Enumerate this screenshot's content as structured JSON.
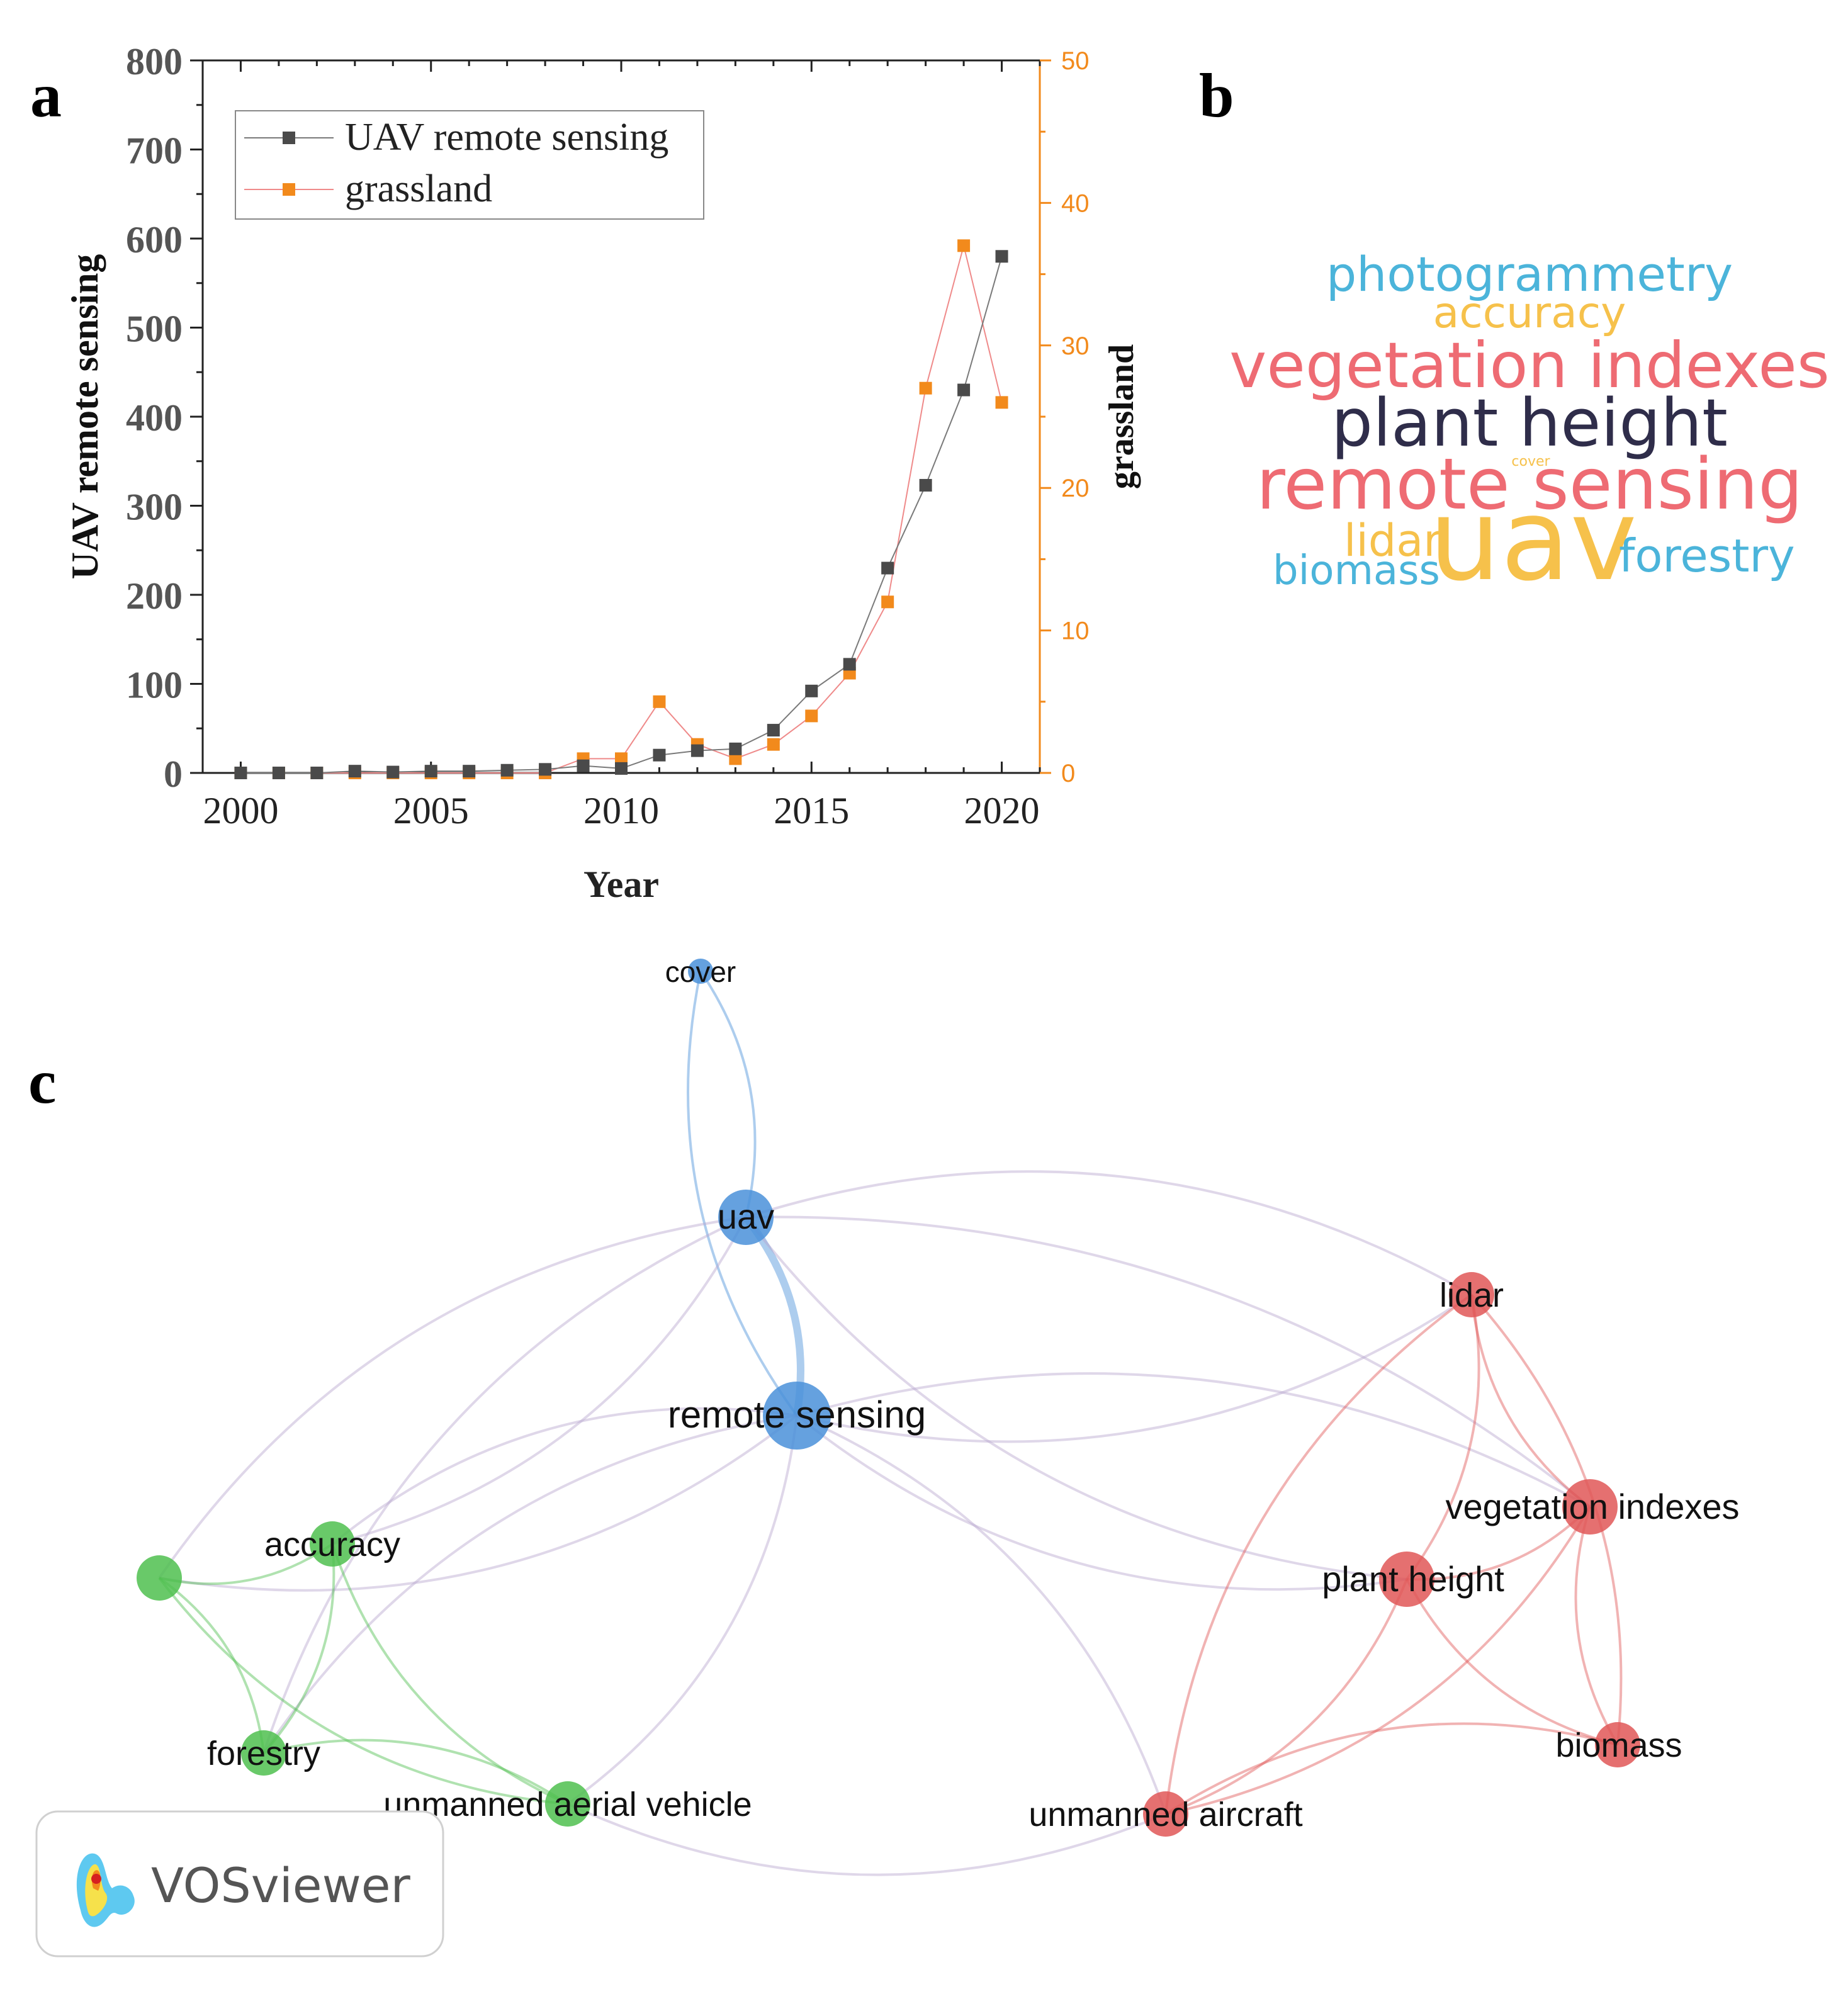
{
  "panels": {
    "a": "a",
    "b": "b",
    "c": "c"
  },
  "chart_data": [
    {
      "type": "line",
      "title": "",
      "xlabel": "Year",
      "ylabel": "UAV remote sensing",
      "y2label": "grassland",
      "x": [
        2000,
        2001,
        2002,
        2003,
        2004,
        2005,
        2006,
        2007,
        2008,
        2009,
        2010,
        2011,
        2012,
        2013,
        2014,
        2015,
        2016,
        2017,
        2018,
        2019,
        2020
      ],
      "xticks": [
        "2000",
        "2005",
        "2010",
        "2015",
        "2020"
      ],
      "xlim": [
        1999,
        2021
      ],
      "ylim": [
        0,
        800
      ],
      "yticks": [
        "0",
        "100",
        "200",
        "300",
        "400",
        "500",
        "600",
        "700",
        "800"
      ],
      "y2lim": [
        0,
        50
      ],
      "y2ticks": [
        "0",
        "10",
        "20",
        "30",
        "40",
        "50"
      ],
      "legend_position": "top-left",
      "series": [
        {
          "name": "UAV remote sensing",
          "axis": "left",
          "color": "#4a4a4a",
          "line_color": "#7a7a7a",
          "values": [
            0,
            0,
            0,
            2,
            1,
            2,
            2,
            3,
            4,
            8,
            5,
            20,
            25,
            27,
            48,
            92,
            122,
            230,
            323,
            430,
            580
          ]
        },
        {
          "name": "grassland",
          "axis": "right",
          "color": "#f28a1c",
          "line_color": "#ef8a8a",
          "values": [
            0,
            0,
            0,
            0,
            0,
            0,
            0,
            0,
            0,
            1,
            1,
            5,
            2,
            1,
            2,
            4,
            7,
            12,
            27,
            37,
            26
          ]
        }
      ]
    },
    {
      "type": "wordcloud",
      "words": [
        {
          "text": "photogrammetry",
          "color": "#4bb4da"
        },
        {
          "text": "accuracy",
          "color": "#f6c14b"
        },
        {
          "text": "vegetation indexes",
          "color": "#ee6b73"
        },
        {
          "text": "plant height",
          "color": "#2f2d4a"
        },
        {
          "text": "cover",
          "color": "#f6c14b"
        },
        {
          "text": "remote sensing",
          "color": "#ee6b73"
        },
        {
          "text": "lidar",
          "color": "#f6c14b"
        },
        {
          "text": "uav",
          "color": "#f6c14b"
        },
        {
          "text": "forestry",
          "color": "#4bb4da"
        },
        {
          "text": "biomass",
          "color": "#4bb4da"
        }
      ]
    },
    {
      "type": "network",
      "brand": "VOSviewer",
      "clusters": {
        "blue": "#4a90d9",
        "green": "#4fbf4f",
        "red": "#e05757"
      },
      "nodes": [
        {
          "id": "cover",
          "label": "cover",
          "cluster": "blue",
          "weight": 1
        },
        {
          "id": "uav",
          "label": "uav",
          "cluster": "blue",
          "weight": 4
        },
        {
          "id": "remote-sensing",
          "label": "remote sensing",
          "cluster": "blue",
          "weight": 5
        },
        {
          "id": "green-unlabeled",
          "label": "",
          "cluster": "green",
          "weight": 3
        },
        {
          "id": "accuracy",
          "label": "accuracy",
          "cluster": "green",
          "weight": 3
        },
        {
          "id": "forestry",
          "label": "forestry",
          "cluster": "green",
          "weight": 3
        },
        {
          "id": "unmanned-aerial-vehicle",
          "label": "unmanned aerial vehicle",
          "cluster": "green",
          "weight": 3
        },
        {
          "id": "lidar",
          "label": "lidar",
          "cluster": "red",
          "weight": 3
        },
        {
          "id": "vegetation-indexes",
          "label": "vegetation indexes",
          "cluster": "red",
          "weight": 4
        },
        {
          "id": "plant-height",
          "label": "plant height",
          "cluster": "red",
          "weight": 4
        },
        {
          "id": "biomass",
          "label": "biomass",
          "cluster": "red",
          "weight": 3
        },
        {
          "id": "unmanned-aircraft",
          "label": "unmanned aircraft",
          "cluster": "red",
          "weight": 3
        }
      ],
      "edges": [
        [
          "cover",
          "uav"
        ],
        [
          "cover",
          "remote-sensing"
        ],
        [
          "uav",
          "remote-sensing"
        ],
        [
          "uav",
          "green-unlabeled"
        ],
        [
          "uav",
          "accuracy"
        ],
        [
          "uav",
          "forestry"
        ],
        [
          "uav",
          "lidar"
        ],
        [
          "uav",
          "plant-height"
        ],
        [
          "uav",
          "vegetation-indexes"
        ],
        [
          "remote-sensing",
          "accuracy"
        ],
        [
          "remote-sensing",
          "green-unlabeled"
        ],
        [
          "remote-sensing",
          "forestry"
        ],
        [
          "remote-sensing",
          "unmanned-aerial-vehicle"
        ],
        [
          "remote-sensing",
          "plant-height"
        ],
        [
          "remote-sensing",
          "vegetation-indexes"
        ],
        [
          "remote-sensing",
          "lidar"
        ],
        [
          "remote-sensing",
          "unmanned-aircraft"
        ],
        [
          "green-unlabeled",
          "accuracy"
        ],
        [
          "green-unlabeled",
          "forestry"
        ],
        [
          "green-unlabeled",
          "unmanned-aerial-vehicle"
        ],
        [
          "accuracy",
          "forestry"
        ],
        [
          "accuracy",
          "unmanned-aerial-vehicle"
        ],
        [
          "forestry",
          "unmanned-aerial-vehicle"
        ],
        [
          "unmanned-aerial-vehicle",
          "unmanned-aircraft"
        ],
        [
          "lidar",
          "plant-height"
        ],
        [
          "lidar",
          "vegetation-indexes"
        ],
        [
          "lidar",
          "biomass"
        ],
        [
          "lidar",
          "unmanned-aircraft"
        ],
        [
          "vegetation-indexes",
          "plant-height"
        ],
        [
          "vegetation-indexes",
          "biomass"
        ],
        [
          "vegetation-indexes",
          "unmanned-aircraft"
        ],
        [
          "plant-height",
          "biomass"
        ],
        [
          "plant-height",
          "unmanned-aircraft"
        ],
        [
          "biomass",
          "unmanned-aircraft"
        ]
      ]
    }
  ]
}
